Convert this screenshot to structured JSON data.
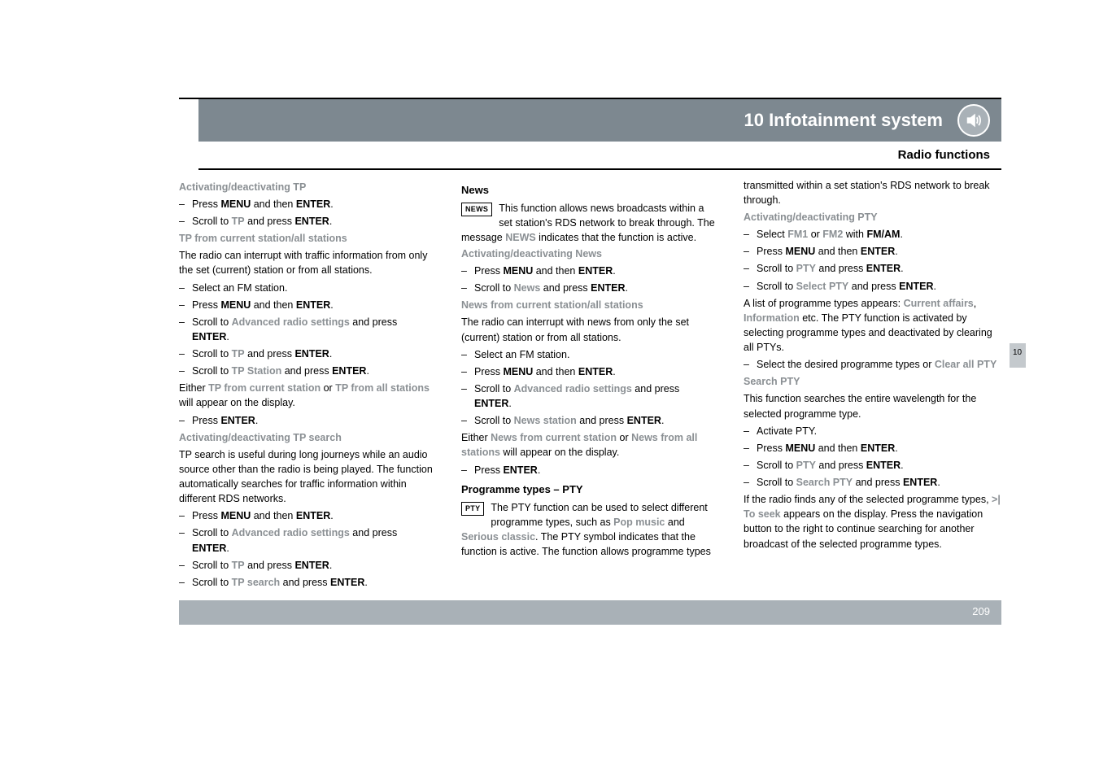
{
  "chapter_title": "10 Infotainment system",
  "section_title": "Radio functions",
  "page_number": "209",
  "tab_label": "10",
  "col1": {
    "h1": "Activating/deactivating TP",
    "b1": "Press <b class=\"hw\">MENU</b> and then <b class=\"hw\">ENTER</b>.",
    "b2": "Scroll to <span class=\"kw\">TP</span> and press <b class=\"hw\">ENTER</b>.",
    "h2": "TP from current station/all stations",
    "p1": "The radio can interrupt with traffic information from only the set (current) station or from all stations.",
    "b3": "Select an FM station.",
    "b4": "Press <b class=\"hw\">MENU</b> and then <b class=\"hw\">ENTER</b>.",
    "b5": "Scroll to <span class=\"kw\">Advanced radio settings</span> and press <b class=\"hw\">ENTER</b>.",
    "b6": "Scroll to <span class=\"kw\">TP</span> and press <b class=\"hw\">ENTER</b>.",
    "b7": "Scroll to <span class=\"kw\">TP Station</span> and press <b class=\"hw\">ENTER</b>.",
    "p2": "Either <span class=\"kw\">TP from current station</span> or <span class=\"kw\">TP from all stations</span> will appear on the display.",
    "b8": "Press <b class=\"hw\">ENTER</b>.",
    "h3": "Activating/deactivating TP search",
    "p3": "TP search is useful during long journeys while an audio source other than the radio is being played. The function automatically searches for traffic information within different RDS networks.",
    "b9": "Press <b class=\"hw\">MENU</b> and then <b class=\"hw\">ENTER</b>.",
    "b10": "Scroll to <span class=\"kw\">Advanced radio settings</span> and press <b class=\"hw\">ENTER</b>.",
    "b11": "Scroll to <span class=\"kw\">TP</span> and press <b class=\"hw\">ENTER</b>.",
    "b12": "Scroll to <span class=\"kw\">TP search</span> and press <b class=\"hw\">ENTER</b>."
  },
  "col2": {
    "h1": "News",
    "badge1": "NEWS",
    "p1": "This function allows news broadcasts within a set station's RDS network to break through. The message <span class=\"kw\">NEWS</span> indicates that the function is active.",
    "h2": "Activating/deactivating News",
    "b1": "Press <b class=\"hw\">MENU</b> and then <b class=\"hw\">ENTER</b>.",
    "b2": "Scroll to <span class=\"kw\">News</span> and press <b class=\"hw\">ENTER</b>.",
    "h3": "News from current station/all stations",
    "p2": "The radio can interrupt with news from only the set (current) station or from all stations.",
    "b3": "Select an FM station.",
    "b4": "Press <b class=\"hw\">MENU</b> and then <b class=\"hw\">ENTER</b>.",
    "b5": "Scroll to <span class=\"kw\">Advanced radio settings</span> and press <b class=\"hw\">ENTER</b>.",
    "b6": "Scroll to <span class=\"kw\">News station</span> and press <b class=\"hw\">ENTER</b>.",
    "p3": "Either <span class=\"kw\">News from current station</span> or <span class=\"kw\">News from all stations</span> will appear on the display.",
    "b7": "Press <b class=\"hw\">ENTER</b>.",
    "h4": "Programme types – PTY",
    "badge2": "PTY",
    "p4": "The PTY function can be used to select different programme types, such as <span class=\"kw\">Pop music</span> and <span class=\"kw\">Serious classic</span>. The PTY symbol indicates that the function is active. The function allows programme types"
  },
  "col3": {
    "p0": "transmitted within a set station's RDS network to break through.",
    "h1": "Activating/deactivating PTY",
    "b1": "Select <span class=\"kw\">FM1</span> or <span class=\"kw\">FM2</span> with <b class=\"hw\">FM/AM</b>.",
    "b2": "Press <b class=\"hw\">MENU</b> and then <b class=\"hw\">ENTER</b>.",
    "b3": "Scroll to <span class=\"kw\">PTY</span> and press <b class=\"hw\">ENTER</b>.",
    "b4": "Scroll to <span class=\"kw\">Select PTY</span> and press <b class=\"hw\">ENTER</b>.",
    "p1": "A list of programme types appears: <span class=\"kw\">Current affairs</span>, <span class=\"kw\">Information</span> etc. The PTY function is activated by selecting programme types and deactivated by clearing all PTYs.",
    "b5": "Select the desired programme types or <span class=\"kw\">Clear all PTY</span>",
    "h2": "Search PTY",
    "p2": "This function searches the entire wavelength for the selected programme type.",
    "b6": "Activate PTY.",
    "b7": "Press <b class=\"hw\">MENU</b> and then <b class=\"hw\">ENTER</b>.",
    "b8": "Scroll to <span class=\"kw\">PTY</span> and press <b class=\"hw\">ENTER</b>.",
    "b9": "Scroll to <span class=\"kw\">Search PTY</span> and press <b class=\"hw\">ENTER</b>.",
    "p3": "If the radio finds any of the selected programme types, <span class=\"kw\">&gt;| To seek</span> appears on the display. Press the navigation button to the right to continue searching for another broadcast of the selected programme types."
  },
  "colors": {
    "header_bg": "#7d8890",
    "footer_bg": "#a9b1b7",
    "tab_bg": "#c4c9cd",
    "muted_text": "#8a8f93"
  }
}
